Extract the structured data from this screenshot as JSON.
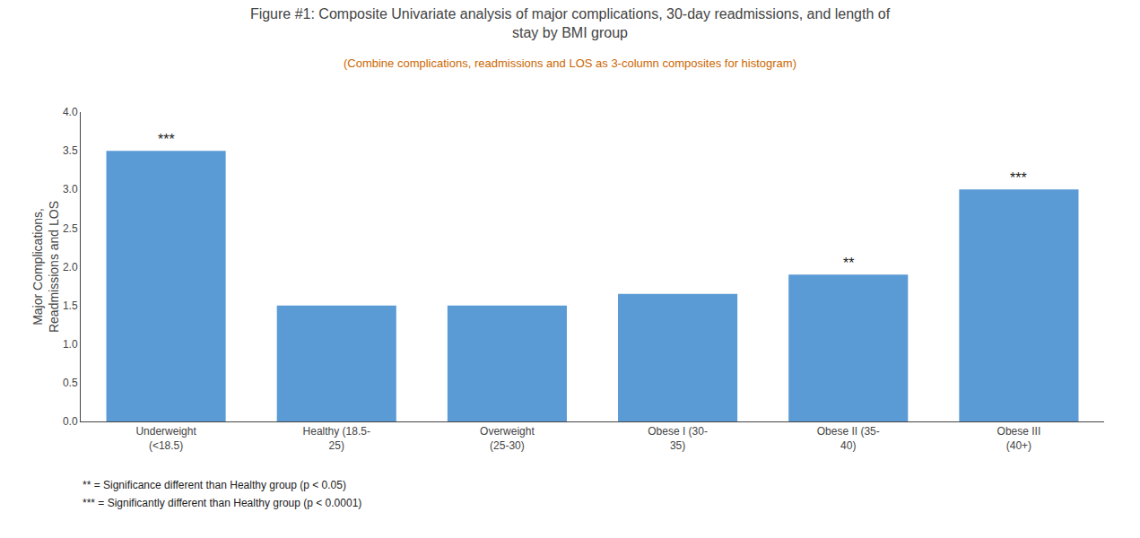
{
  "chart_data": {
    "type": "bar",
    "title": "Figure #1: Composite Univariate analysis of major complications, 30-day readmissions, and length of\nstay by BMI group",
    "subtitle": "(Combine complications, readmissions and LOS as 3-column composites for histogram)",
    "subtitle_color": "#cc6600",
    "ylabel": "Major Complications,\nReadmissions and LOS",
    "categories": [
      "Underweight\n(<18.5)",
      "Healthy (18.5-\n25)",
      "Overweight\n(25-30)",
      "Obese I (30-\n35)",
      "Obese II (35-\n40)",
      "Obese III\n(40+)"
    ],
    "values": [
      3.5,
      1.5,
      1.5,
      1.65,
      1.9,
      3.0
    ],
    "color": "#5b9bd5",
    "ylim": [
      0,
      4.0
    ],
    "yticks": [
      {
        "value": 0,
        "label": "0.0"
      },
      0.5,
      {
        "value": 1.0,
        "label": "1.0"
      },
      1.5,
      {
        "value": 2.0,
        "label": "2.0"
      },
      2.5,
      {
        "value": 3.0,
        "label": "3.0"
      },
      3.5,
      {
        "value": 4.0,
        "label": "4.0"
      }
    ],
    "grid": false,
    "annotations": [
      {
        "category": "Underweight\n(<18.5)",
        "text": "***"
      },
      {
        "category": "Obese II (35-\n40)",
        "text": "**"
      },
      {
        "category": "Obese III\n(40+)",
        "text": "***"
      }
    ],
    "notes": [
      "** = Significance different than Healthy group (p < 0.05)",
      "*** = Significantly different than Healthy group (p < 0.0001)"
    ]
  }
}
